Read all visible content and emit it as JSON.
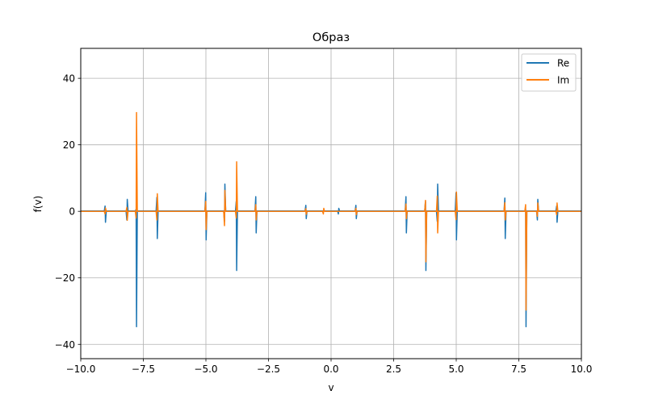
{
  "chart_data": {
    "type": "line",
    "title": "Образ",
    "xlabel": "v",
    "ylabel": "f(v)",
    "xlim": [
      -10,
      10
    ],
    "ylim": [
      -44.3,
      49
    ],
    "x_ticks": [
      -10,
      -7.5,
      -5,
      -2.5,
      0,
      2.5,
      5,
      7.5,
      10
    ],
    "x_tick_labels": [
      "−10.0",
      "−7.5",
      "−5.0",
      "−2.5",
      "0.0",
      "2.5",
      "5.0",
      "7.5",
      "10.0"
    ],
    "y_ticks": [
      -40,
      -20,
      0,
      20,
      40
    ],
    "y_tick_labels": [
      "−40",
      "−20",
      "0",
      "20",
      "40"
    ],
    "grid": true,
    "legend": {
      "position": "top-right",
      "entries": [
        "Re",
        "Im"
      ]
    },
    "series": [
      {
        "name": "Re",
        "color": "#1f77b4",
        "baseline": 0.1,
        "peaks": [
          {
            "x": -9.02,
            "hi": 1.6,
            "lo": -3.3
          },
          {
            "x": -8.15,
            "hi": 3.6,
            "lo": -2.6
          },
          {
            "x": -7.78,
            "hi": 0.6,
            "lo": -34.7
          },
          {
            "x": -6.95,
            "hi": 4.2,
            "lo": -8.2
          },
          {
            "x": -5.0,
            "hi": 5.6,
            "lo": -8.6
          },
          {
            "x": -4.25,
            "hi": 8.2,
            "lo": -3.0
          },
          {
            "x": -3.78,
            "hi": 3.0,
            "lo": -17.8
          },
          {
            "x": -3.0,
            "hi": 4.4,
            "lo": -6.5
          },
          {
            "x": -1.0,
            "hi": 1.8,
            "lo": -2.2
          },
          {
            "x": 0.3,
            "hi": 0.9,
            "lo": -0.8
          },
          {
            "x": 1.0,
            "hi": 1.8,
            "lo": -2.2
          },
          {
            "x": 3.0,
            "hi": 4.4,
            "lo": -6.5
          },
          {
            "x": 3.78,
            "hi": 3.0,
            "lo": -17.8
          },
          {
            "x": 4.25,
            "hi": 8.2,
            "lo": -3.0
          },
          {
            "x": 5.0,
            "hi": 5.6,
            "lo": -8.6
          },
          {
            "x": 6.95,
            "hi": 4.0,
            "lo": -8.2
          },
          {
            "x": 7.78,
            "hi": 0.6,
            "lo": -34.7
          },
          {
            "x": 8.25,
            "hi": 3.6,
            "lo": -2.6
          },
          {
            "x": 9.02,
            "hi": 1.6,
            "lo": -3.3
          }
        ]
      },
      {
        "name": "Im",
        "color": "#ff7f0e",
        "baseline": 0.0,
        "peaks": [
          {
            "x": -9.02,
            "hi": 1.0,
            "lo": -0.8
          },
          {
            "x": -8.15,
            "hi": 1.2,
            "lo": -2.7
          },
          {
            "x": -7.78,
            "hi": 29.7,
            "lo": -2.0
          },
          {
            "x": -6.95,
            "hi": 5.3,
            "lo": -2.6
          },
          {
            "x": -5.0,
            "hi": 3.0,
            "lo": -5.5
          },
          {
            "x": -4.25,
            "hi": 6.3,
            "lo": -4.3
          },
          {
            "x": -3.78,
            "hi": 14.9,
            "lo": -2.0
          },
          {
            "x": -3.0,
            "hi": 2.0,
            "lo": -2.6
          },
          {
            "x": -1.0,
            "hi": 0.8,
            "lo": -0.9
          },
          {
            "x": -0.3,
            "hi": 0.9,
            "lo": -0.8
          },
          {
            "x": 1.0,
            "hi": 0.9,
            "lo": -1.0
          },
          {
            "x": 3.0,
            "hi": 2.2,
            "lo": -2.2
          },
          {
            "x": 3.78,
            "hi": 3.3,
            "lo": -15.2
          },
          {
            "x": 4.25,
            "hi": 4.6,
            "lo": -6.5
          },
          {
            "x": 5.0,
            "hi": 5.8,
            "lo": -2.5
          },
          {
            "x": 6.95,
            "hi": 2.6,
            "lo": -2.6
          },
          {
            "x": 7.78,
            "hi": 2.0,
            "lo": -29.7
          },
          {
            "x": 8.25,
            "hi": 2.5,
            "lo": -1.5
          },
          {
            "x": 9.02,
            "hi": 2.5,
            "lo": -1.0
          }
        ]
      }
    ]
  }
}
